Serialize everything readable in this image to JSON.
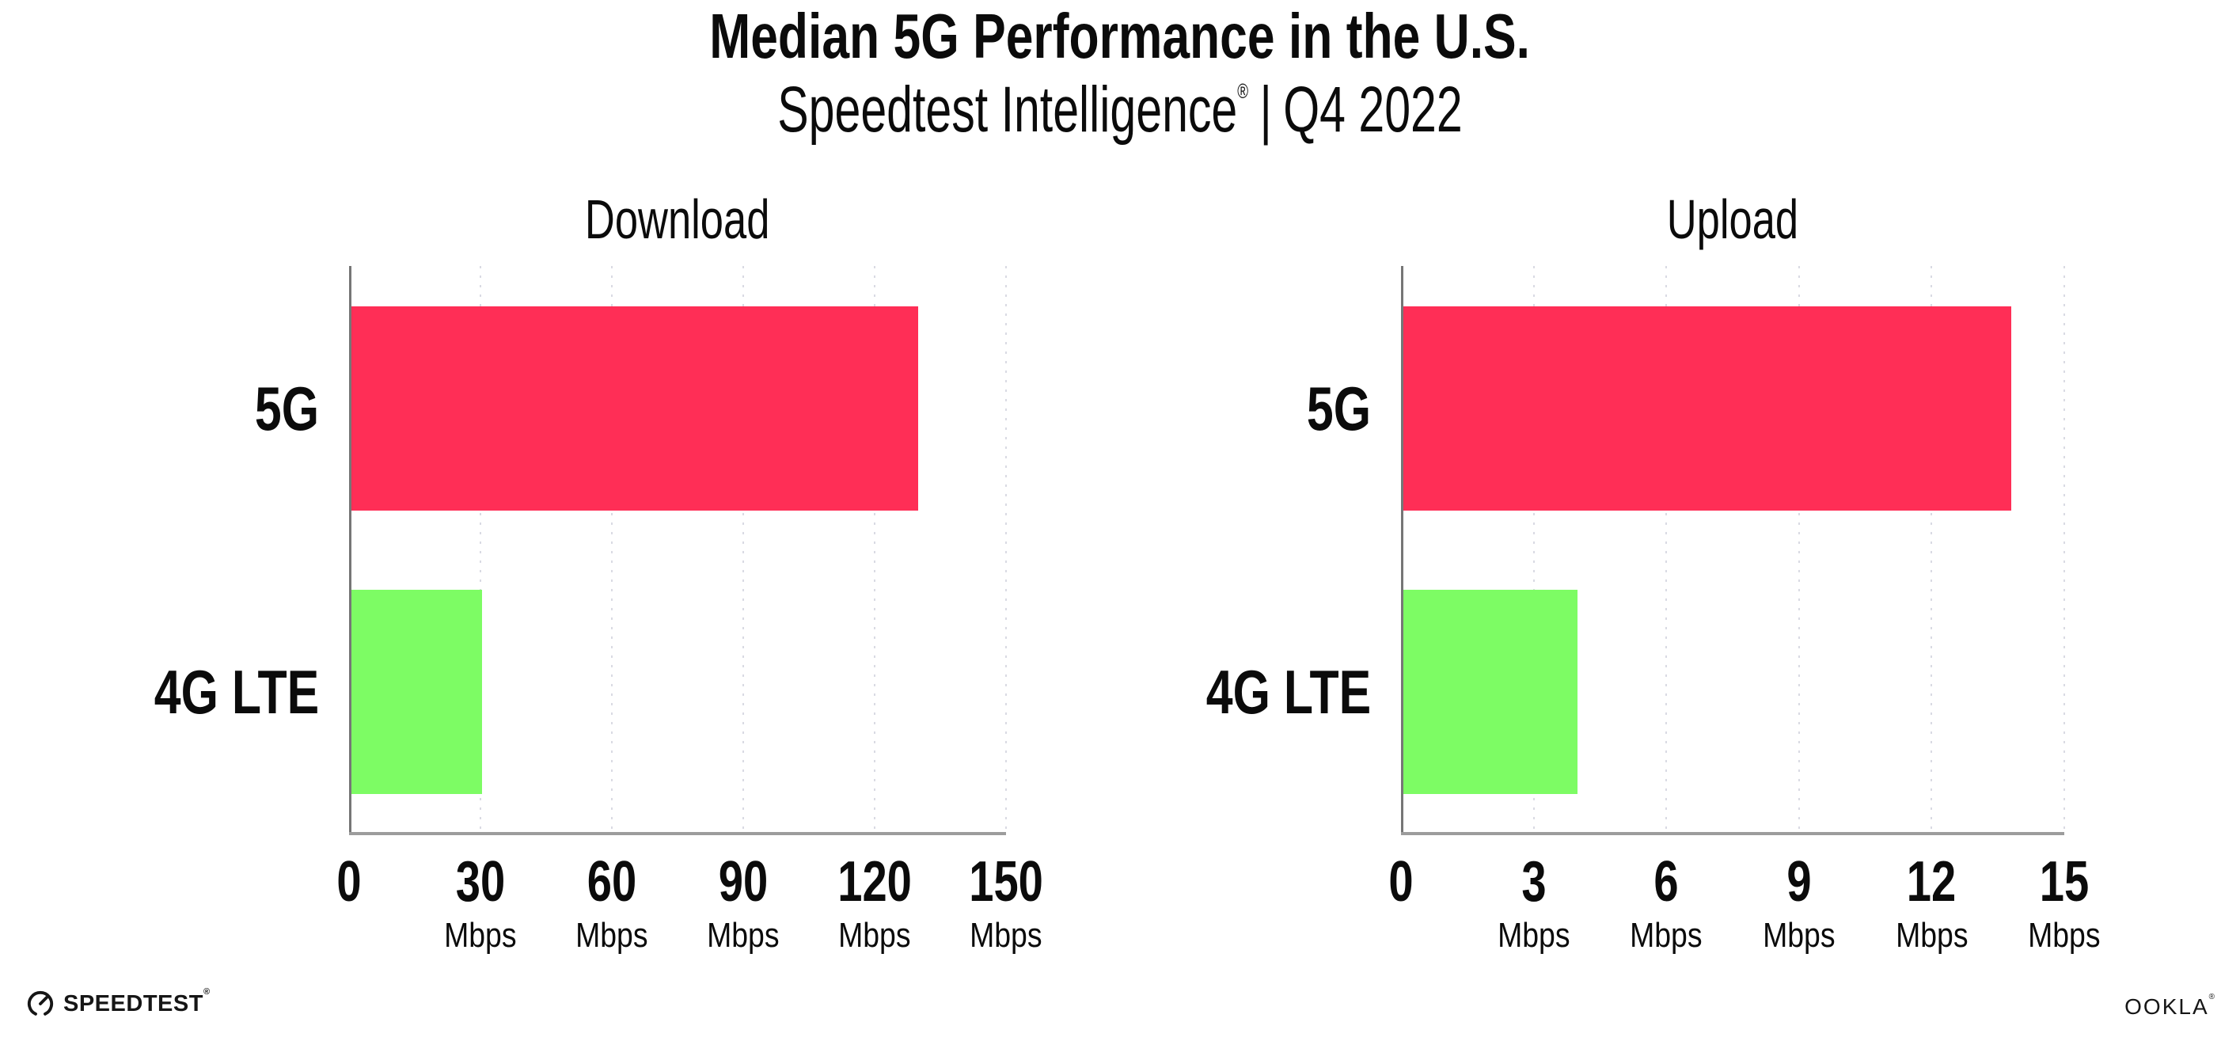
{
  "header": {
    "title": "Median 5G Performance in the U.S.",
    "subtitle_product": "Speedtest Intelligence",
    "reg_mark": "®",
    "subtitle_separator": "|",
    "subtitle_period": "Q4 2022"
  },
  "chart_data": [
    {
      "type": "bar",
      "orientation": "horizontal",
      "title": "Download",
      "categories": [
        "5G",
        "4G LTE"
      ],
      "values": [
        130,
        30.4
      ],
      "unit": "Mbps",
      "xlim": [
        0,
        150
      ],
      "xticks": [
        0,
        30,
        60,
        90,
        120,
        150
      ],
      "bar_colors": [
        "#ff2e56",
        "#7dfc64"
      ],
      "grid": "dotted-vertical",
      "legend": "none"
    },
    {
      "type": "bar",
      "orientation": "horizontal",
      "title": "Upload",
      "categories": [
        "5G",
        "4G LTE"
      ],
      "values": [
        13.8,
        4.0
      ],
      "unit": "Mbps",
      "xlim": [
        0,
        15
      ],
      "xticks": [
        0,
        3,
        6,
        9,
        12,
        15
      ],
      "bar_colors": [
        "#ff2e56",
        "#7dfc64"
      ],
      "grid": "dotted-vertical",
      "legend": "none"
    }
  ],
  "footer": {
    "speedtest_label": "SPEEDTEST",
    "speedtest_reg": "®",
    "ookla_label": "OOKLA",
    "ookla_reg": "®"
  },
  "colors": {
    "bar_5g": "#ff2e56",
    "bar_4g_lte": "#7dfc64",
    "axis_y": "#767676",
    "axis_x": "#9c9c9c",
    "gridline": "#d9dae3",
    "text": "#0b0b0b",
    "background": "#ffffff"
  }
}
